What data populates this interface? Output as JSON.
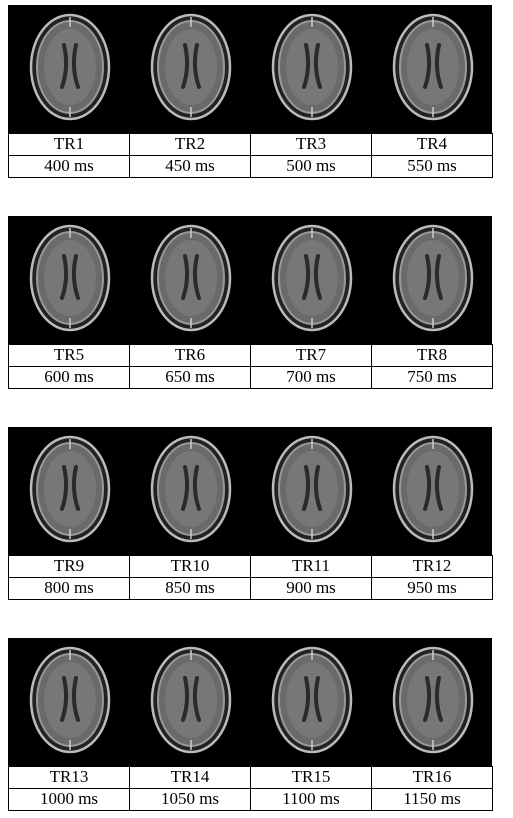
{
  "panels": [
    {
      "label": "TR1",
      "time": "400 ms"
    },
    {
      "label": "TR2",
      "time": "450 ms"
    },
    {
      "label": "TR3",
      "time": "500 ms"
    },
    {
      "label": "TR4",
      "time": "550 ms"
    },
    {
      "label": "TR5",
      "time": "600 ms"
    },
    {
      "label": "TR6",
      "time": "650 ms"
    },
    {
      "label": "TR7",
      "time": "700 ms"
    },
    {
      "label": "TR8",
      "time": "750 ms"
    },
    {
      "label": "TR9",
      "time": "800 ms"
    },
    {
      "label": "TR10",
      "time": "850 ms"
    },
    {
      "label": "TR11",
      "time": "900 ms"
    },
    {
      "label": "TR12",
      "time": "950 ms"
    },
    {
      "label": "TR13",
      "time": "1000 ms"
    },
    {
      "label": "TR14",
      "time": "1050 ms"
    },
    {
      "label": "TR15",
      "time": "1100 ms"
    },
    {
      "label": "TR16",
      "time": "1150 ms"
    }
  ]
}
